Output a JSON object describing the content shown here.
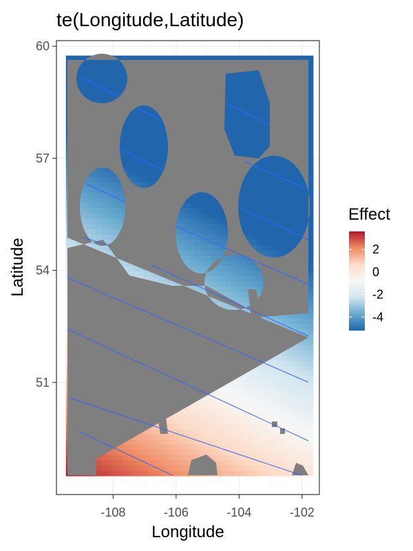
{
  "chart_data": {
    "type": "heatmap",
    "title": "te(Longitude,Latitude)",
    "xlabel": "Longitude",
    "ylabel": "Latitude",
    "xlim": [
      -109.8,
      -101.45
    ],
    "ylim": [
      48.0,
      60.15
    ],
    "x_ticks": [
      -108,
      -106,
      -104,
      -102
    ],
    "y_ticks": [
      51,
      54,
      57,
      60
    ],
    "x_tick_labels": [
      "-108",
      "-106",
      "-104",
      "-102"
    ],
    "y_tick_labels": [
      "51",
      "54",
      "57",
      "60"
    ],
    "grid": true,
    "legend": {
      "title": "Effect",
      "position": "right",
      "breaks": [
        2,
        0,
        -2,
        -4
      ],
      "labels": [
        "2",
        "0",
        "-2",
        "-4"
      ],
      "range": [
        -5.2,
        3.6
      ],
      "colors": [
        "#b2182b",
        "#ef8a62",
        "#fddbc7",
        "#f7f7f7",
        "#d1e5f0",
        "#67a9cf",
        "#2166ac"
      ]
    },
    "surface": {
      "description_fields": "effect = a + b*(lat-48.5) + c*(lon+109.5)",
      "a": 3.6,
      "b": -0.96,
      "c": -0.44
    },
    "contour_color": "#3366ff",
    "mask_color": "#7f7f7f"
  }
}
